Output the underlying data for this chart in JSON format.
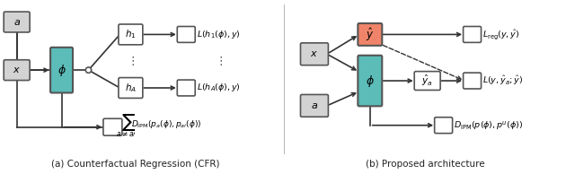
{
  "fig_width": 6.4,
  "fig_height": 1.94,
  "dpi": 100,
  "bg_color": "#ffffff",
  "teal_color": "#5bbcb8",
  "salmon_color": "#f0846a",
  "gray_color": "#d3d3d3",
  "box_edge_color": "#555555",
  "caption_left": "(a) Counterfactual Regression (CFR)",
  "caption_right": "(b) Proposed architecture"
}
